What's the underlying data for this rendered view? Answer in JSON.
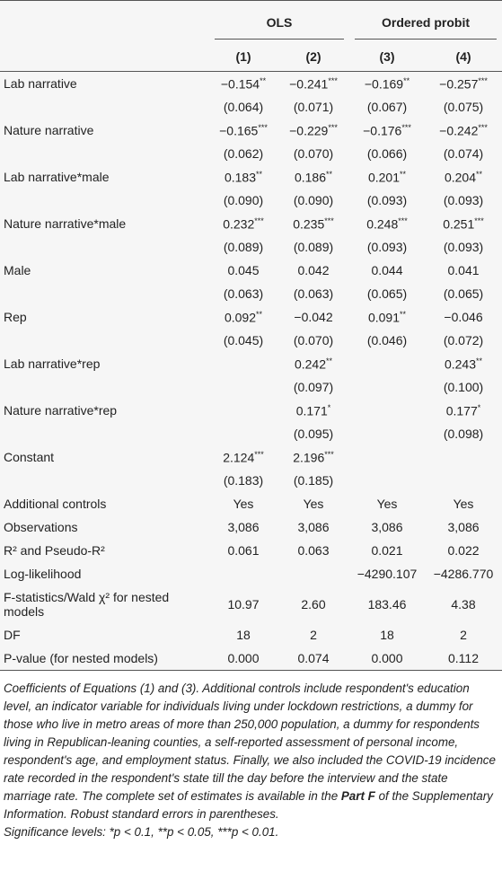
{
  "table": {
    "groups": [
      "OLS",
      "Ordered probit"
    ],
    "columns": [
      "(1)",
      "(2)",
      "(3)",
      "(4)"
    ],
    "rows": [
      {
        "label": "Lab narrative",
        "coef": [
          {
            "value": "−0.154",
            "stars": "**"
          },
          {
            "value": "−0.241",
            "stars": "***"
          },
          {
            "value": "−0.169",
            "stars": "**"
          },
          {
            "value": "−0.257",
            "stars": "***"
          }
        ],
        "se": [
          "(0.064)",
          "(0.071)",
          "(0.067)",
          "(0.075)"
        ]
      },
      {
        "label": "Nature narrative",
        "coef": [
          {
            "value": "−0.165",
            "stars": "***"
          },
          {
            "value": "−0.229",
            "stars": "***"
          },
          {
            "value": "−0.176",
            "stars": "***"
          },
          {
            "value": "−0.242",
            "stars": "***"
          }
        ],
        "se": [
          "(0.062)",
          "(0.070)",
          "(0.066)",
          "(0.074)"
        ]
      },
      {
        "label": "Lab narrative*male",
        "coef": [
          {
            "value": "0.183",
            "stars": "**"
          },
          {
            "value": "0.186",
            "stars": "**"
          },
          {
            "value": "0.201",
            "stars": "**"
          },
          {
            "value": "0.204",
            "stars": "**"
          }
        ],
        "se": [
          "(0.090)",
          "(0.090)",
          "(0.093)",
          "(0.093)"
        ]
      },
      {
        "label": "Nature narrative*male",
        "coef": [
          {
            "value": "0.232",
            "stars": "***"
          },
          {
            "value": "0.235",
            "stars": "***"
          },
          {
            "value": "0.248",
            "stars": "***"
          },
          {
            "value": "0.251",
            "stars": "***"
          }
        ],
        "se": [
          "(0.089)",
          "(0.089)",
          "(0.093)",
          "(0.093)"
        ]
      },
      {
        "label": "Male",
        "coef": [
          {
            "value": "0.045"
          },
          {
            "value": "0.042"
          },
          {
            "value": "0.044"
          },
          {
            "value": "0.041"
          }
        ],
        "se": [
          "(0.063)",
          "(0.063)",
          "(0.065)",
          "(0.065)"
        ]
      },
      {
        "label": "Rep",
        "coef": [
          {
            "value": "0.092",
            "stars": "**"
          },
          {
            "value": "−0.042"
          },
          {
            "value": "0.091",
            "stars": "**"
          },
          {
            "value": "−0.046"
          }
        ],
        "se": [
          "(0.045)",
          "(0.070)",
          "(0.046)",
          "(0.072)"
        ]
      },
      {
        "label": "Lab narrative*rep",
        "coef": [
          null,
          {
            "value": "0.242",
            "stars": "**"
          },
          null,
          {
            "value": "0.243",
            "stars": "**"
          }
        ],
        "se": [
          null,
          "(0.097)",
          null,
          "(0.100)"
        ]
      },
      {
        "label": "Nature narrative*rep",
        "coef": [
          null,
          {
            "value": "0.171",
            "stars": "*"
          },
          null,
          {
            "value": "0.177",
            "stars": "*"
          }
        ],
        "se": [
          null,
          "(0.095)",
          null,
          "(0.098)"
        ]
      },
      {
        "label": "Constant",
        "coef": [
          {
            "value": "2.124",
            "stars": "***"
          },
          {
            "value": "2.196",
            "stars": "***"
          },
          null,
          null
        ],
        "se": [
          "(0.183)",
          "(0.185)",
          null,
          null
        ]
      }
    ],
    "stats": [
      {
        "label": "Additional controls",
        "cells": [
          "Yes",
          "Yes",
          "Yes",
          "Yes"
        ]
      },
      {
        "label": "Observations",
        "cells": [
          "3,086",
          "3,086",
          "3,086",
          "3,086"
        ]
      },
      {
        "label": "R² and Pseudo-R²",
        "cells": [
          "0.061",
          "0.063",
          "0.021",
          "0.022"
        ]
      },
      {
        "label": "Log-likelihood",
        "cells": [
          null,
          null,
          "−4290.107",
          "−4286.770"
        ]
      },
      {
        "label": "F-statistics/Wald χ² for nested models",
        "cells": [
          "10.97",
          "2.60",
          "183.46",
          "4.38"
        ]
      },
      {
        "label": "DF",
        "cells": [
          "18",
          "2",
          "18",
          "2"
        ]
      },
      {
        "label": "P-value (for nested models)",
        "cells": [
          "0.000",
          "0.074",
          "0.000",
          "0.112"
        ]
      }
    ]
  },
  "notes": {
    "text_1": "Coefficients of Equations (1) and (3). Additional controls include respondent's education level, an indicator variable for individuals living under lockdown restrictions, a dummy for those who live in metro areas of more than 250,000 population, a dummy for respondents living in Republican-leaning counties, a self-reported assessment of personal income, respondent's age, and employment status. Finally, we also included the COVID-19 incidence rate recorded in the respondent's state till the day before the interview and the state marriage rate. The complete set of estimates is available in the",
    "bold": "Part F",
    "text_2": "of the Supplementary Information. Robust standard errors in parentheses.",
    "significance": "Significance levels: *p < 0.1, **p < 0.05, ***p < 0.01."
  }
}
